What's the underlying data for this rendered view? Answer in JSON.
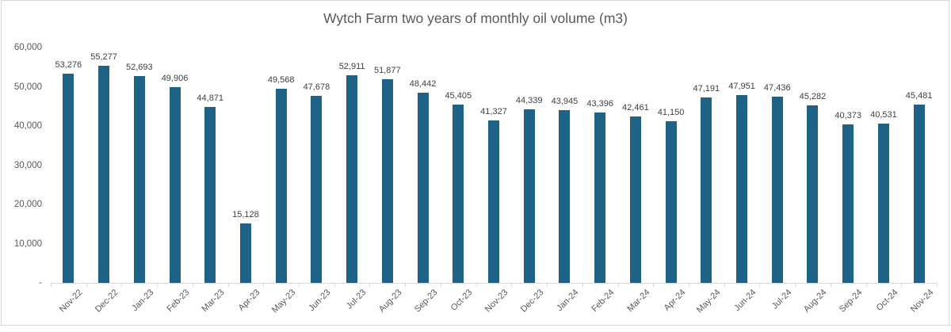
{
  "window": {
    "background": "#ffffff",
    "frame_border_color": "#d9d9d9"
  },
  "chart_data": {
    "type": "bar",
    "title": "Wytch Farm two years of monthly oil volume (m3)",
    "categories": [
      "Nov-22",
      "Dec-22",
      "Jan-23",
      "Feb-23",
      "Mar-23",
      "Apr-23",
      "May-23",
      "Jun-23",
      "Jul-23",
      "Aug-23",
      "Sep-23",
      "Oct-23",
      "Nov-23",
      "Dec-23",
      "Jan-24",
      "Feb-24",
      "Mar-24",
      "Apr-24",
      "May-24",
      "Jun-24",
      "Jul-24",
      "Aug-24",
      "Sep-24",
      "Oct-24",
      "Nov-24"
    ],
    "values": [
      53276,
      55277,
      52693,
      49906,
      44871,
      15128,
      49568,
      47678,
      52911,
      51877,
      48442,
      45405,
      41327,
      44339,
      43945,
      43396,
      42461,
      41150,
      47191,
      47951,
      47436,
      45282,
      40373,
      40531,
      45481
    ],
    "value_labels": [
      "53,276",
      "55,277",
      "52,693",
      "49,906",
      "44,871",
      "15,128",
      "49,568",
      "47,678",
      "52,911",
      "51,877",
      "48,442",
      "45,405",
      "41,327",
      "44,339",
      "43,945",
      "43,396",
      "42,461",
      "41,150",
      "47,191",
      "47,951",
      "47,436",
      "45,282",
      "40,373",
      "40,531",
      "45,481"
    ],
    "y_ticks": [
      {
        "label": "60,000",
        "value": 60000
      },
      {
        "label": "50,000",
        "value": 50000
      },
      {
        "label": "40,000",
        "value": 40000
      },
      {
        "label": "30,000",
        "value": 30000
      },
      {
        "label": "20,000",
        "value": 20000
      },
      {
        "label": "10,000",
        "value": 10000
      },
      {
        "label": "-",
        "value": 0
      }
    ],
    "ylim": [
      0,
      60000
    ],
    "xlabel": "",
    "ylabel": "",
    "grid": false,
    "legend": "none",
    "bar_color": "#1e6285",
    "axis_color": "#d9d9d9",
    "data_label_color": "#404040",
    "tick_label_color": "#595959",
    "title_color": "#595959"
  }
}
